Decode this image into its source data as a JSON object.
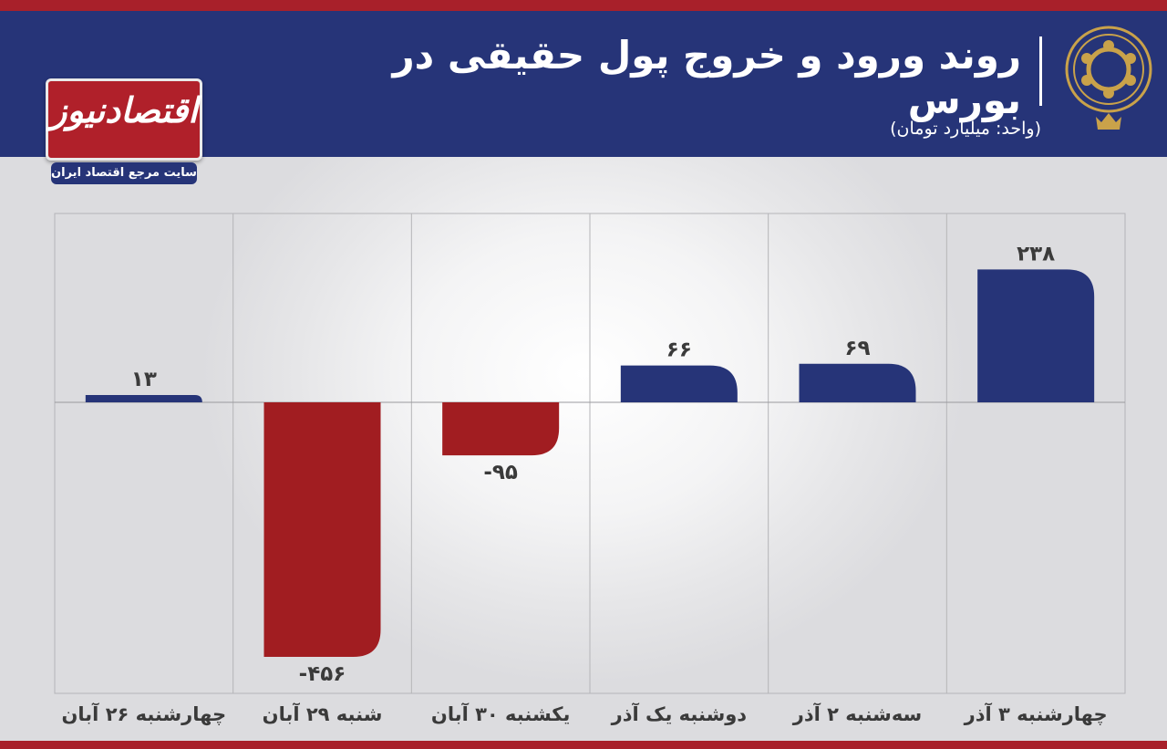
{
  "header": {
    "title": "روند ورود و خروج پول حقیقی در بورس",
    "unit": "(واحد: میلیارد تومان)"
  },
  "logo": {
    "name": "اقتصادنیوز",
    "tagline": "سایت مرجع اقتصاد ایران"
  },
  "colors": {
    "header_bg": "#263478",
    "accent_red": "#a8202a",
    "positive": "#263478",
    "negative": "#a11d21",
    "emblem": "#c9a24a"
  },
  "chart_data": {
    "type": "bar",
    "categories": [
      "چهارشنبه ۲۶ آبان",
      "شنبه ۲۹ آبان",
      "یکشنبه ۳۰ آبان",
      "دوشنبه یک آذر",
      "سه‌شنبه ۲ آذر",
      "چهارشنبه ۳ آذر"
    ],
    "values": [
      13,
      -456,
      -95,
      66,
      69,
      238
    ],
    "value_labels": [
      "۱۳",
      "-۴۵۶",
      "-۹۵",
      "۶۶",
      "۶۹",
      "۲۳۸"
    ],
    "title": "روند ورود و خروج پول حقیقی در بورس",
    "ylabel": "(واحد: میلیارد تومان)",
    "ylim": [
      -520,
      340
    ],
    "grid": true,
    "legend": "none"
  }
}
